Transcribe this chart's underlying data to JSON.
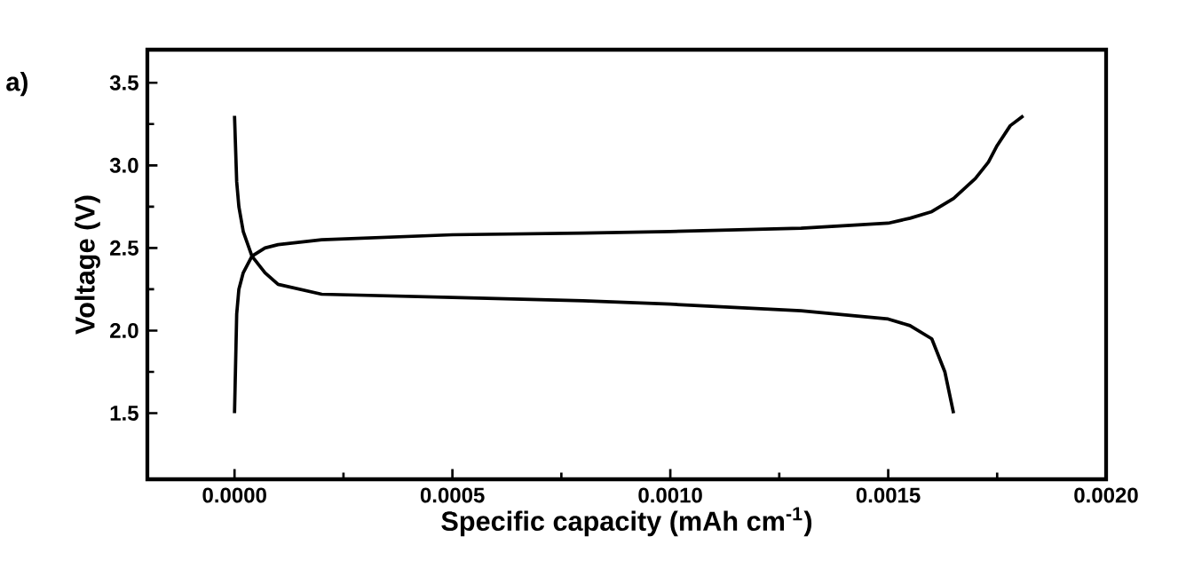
{
  "chart_data": {
    "type": "line",
    "xlabel": "Specific capacity (mAh cm$^{-1}$)",
    "ylabel": "Voltage (V)",
    "annotations": [
      "a)"
    ],
    "xlim": [
      -0.0002,
      0.002
    ],
    "ylim": [
      1.1,
      3.7
    ],
    "xticks": [
      {
        "value": 0,
        "label": "0.0000"
      },
      {
        "value": 0.0005,
        "label": "0.0005"
      },
      {
        "value": 0.001,
        "label": "0.0010"
      },
      {
        "value": 0.0015,
        "label": "0.0015"
      },
      {
        "value": 0.002,
        "label": "0.0020"
      }
    ],
    "yticks": [
      {
        "value": 1.5,
        "label": "1.5"
      },
      {
        "value": 2,
        "label": "2.0"
      },
      {
        "value": 2.5,
        "label": "2.5"
      },
      {
        "value": 3,
        "label": "3.0"
      },
      {
        "value": 3.5,
        "label": "3.5"
      }
    ],
    "grid": false,
    "marker": "none",
    "line_style": "solid",
    "series": [
      {
        "color": "#000000",
        "x": [
          0,
          5e-06,
          1e-05,
          2e-05,
          4e-05,
          7e-05,
          0.0001,
          0.0002,
          0.0005,
          0.0008,
          0.001,
          0.0013,
          0.0015,
          0.00155,
          0.0016,
          0.00165,
          0.0017,
          0.00173,
          0.00175,
          0.00178,
          0.0018,
          0.00181
        ],
        "values": [
          1.5,
          2.1,
          2.25,
          2.35,
          2.45,
          2.5,
          2.52,
          2.55,
          2.58,
          2.59,
          2.6,
          2.62,
          2.65,
          2.68,
          2.72,
          2.8,
          2.92,
          3.02,
          3.12,
          3.24,
          3.28,
          3.3
        ]
      },
      {
        "color": "#000000",
        "x": [
          0,
          5e-06,
          1e-05,
          2e-05,
          4e-05,
          7e-05,
          0.0001,
          0.0002,
          0.0005,
          0.0008,
          0.001,
          0.0013,
          0.0015,
          0.00155,
          0.0016,
          0.00163,
          0.00165
        ],
        "values": [
          3.3,
          2.9,
          2.75,
          2.6,
          2.45,
          2.35,
          2.28,
          2.22,
          2.2,
          2.18,
          2.16,
          2.12,
          2.07,
          2.03,
          1.95,
          1.75,
          1.5
        ]
      }
    ]
  }
}
